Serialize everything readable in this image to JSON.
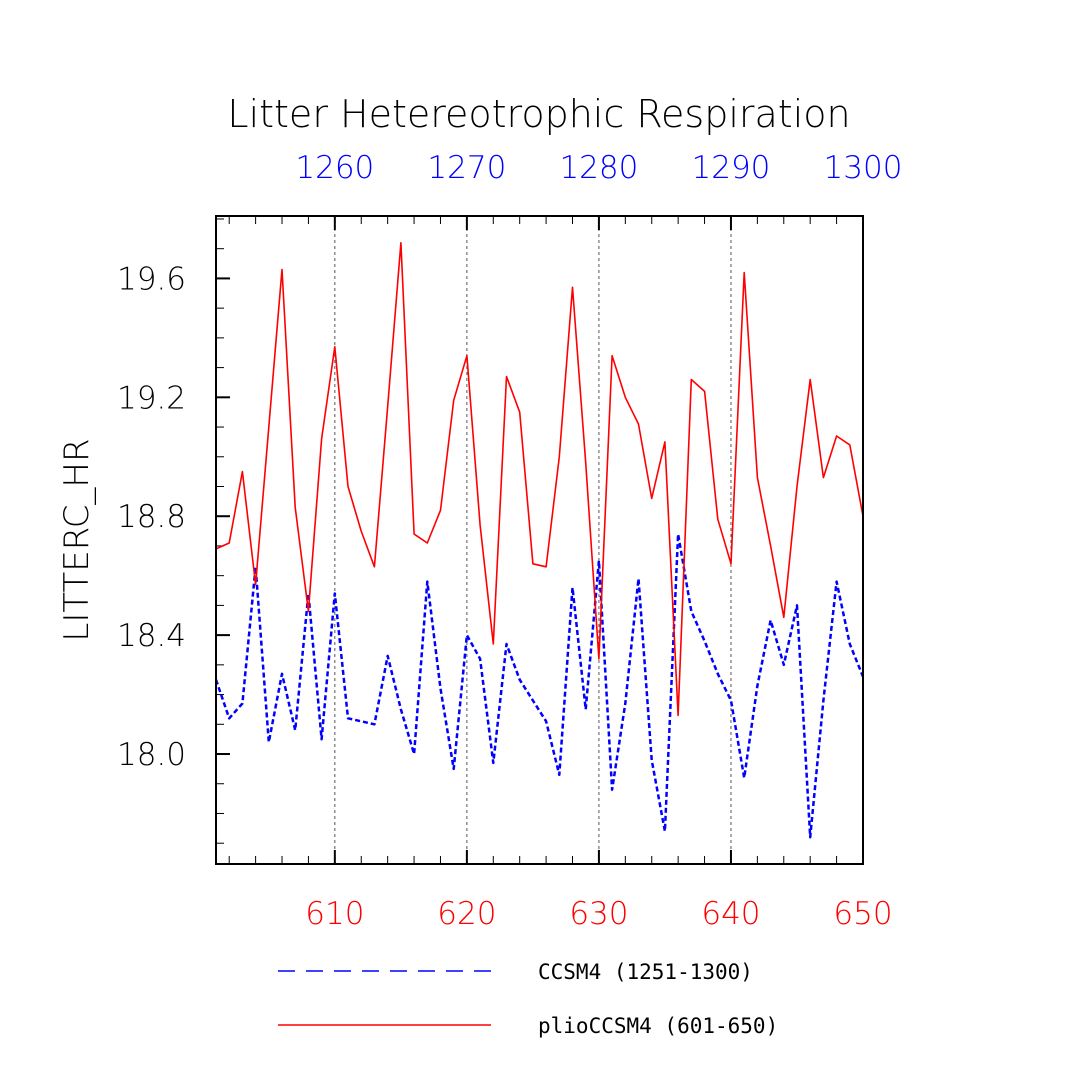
{
  "chart_data": {
    "type": "line",
    "title": "Litter Hetereotrophic Respiration",
    "ylabel": "LITTERC_HR",
    "xlabel": "",
    "x_bottom": {
      "range": [
        601,
        650
      ],
      "ticks": [
        610,
        620,
        630,
        640,
        650
      ],
      "color": "#ff0000"
    },
    "x_top": {
      "range": [
        1251,
        1300
      ],
      "ticks": [
        1260,
        1270,
        1280,
        1290,
        1300
      ],
      "color": "#0000ff"
    },
    "ylim": [
      17.63,
      19.81
    ],
    "y_ticks": [
      18.0,
      18.4,
      18.8,
      19.2,
      19.6
    ],
    "y_tick_labels": [
      "18.0",
      "18.4",
      "18.8",
      "19.2",
      "19.6"
    ],
    "grid": "vertical dashed at major x ticks",
    "legend_position": "bottom",
    "series": [
      {
        "name": "CCSM4 (1251-1300)",
        "axis": "top",
        "color": "#0000ff",
        "dash": "dashed",
        "x": [
          1251,
          1252,
          1253,
          1254,
          1255,
          1256,
          1257,
          1258,
          1259,
          1260,
          1261,
          1262,
          1263,
          1264,
          1265,
          1266,
          1267,
          1268,
          1269,
          1270,
          1271,
          1272,
          1273,
          1274,
          1275,
          1276,
          1277,
          1278,
          1279,
          1280,
          1281,
          1282,
          1283,
          1284,
          1285,
          1286,
          1287,
          1288,
          1289,
          1290,
          1291,
          1292,
          1293,
          1294,
          1295,
          1296,
          1297,
          1298,
          1299,
          1300
        ],
        "values": [
          18.25,
          18.12,
          18.17,
          18.63,
          18.04,
          18.27,
          18.08,
          18.54,
          18.05,
          18.54,
          18.12,
          18.11,
          18.1,
          18.33,
          18.15,
          18.0,
          18.58,
          18.22,
          17.95,
          18.4,
          18.32,
          17.97,
          18.37,
          18.25,
          18.18,
          18.11,
          17.93,
          18.56,
          18.15,
          18.65,
          17.88,
          18.17,
          18.59,
          17.98,
          17.74,
          18.74,
          18.48,
          18.38,
          18.27,
          18.18,
          17.92,
          18.23,
          18.45,
          18.3,
          18.5,
          17.72,
          18.18,
          18.58,
          18.37,
          18.26
        ]
      },
      {
        "name": "plioCCSM4 (601-650)",
        "axis": "bottom",
        "color": "#ff0000",
        "dash": "solid",
        "x": [
          601,
          602,
          603,
          604,
          605,
          606,
          607,
          608,
          609,
          610,
          611,
          612,
          613,
          614,
          615,
          616,
          617,
          618,
          619,
          620,
          621,
          622,
          623,
          624,
          625,
          626,
          627,
          628,
          629,
          630,
          631,
          632,
          633,
          634,
          635,
          636,
          637,
          638,
          639,
          640,
          641,
          642,
          643,
          644,
          645,
          646,
          647,
          648,
          649,
          650
        ],
        "values": [
          18.69,
          18.71,
          18.95,
          18.57,
          19.1,
          19.63,
          18.83,
          18.48,
          19.06,
          19.37,
          18.9,
          18.75,
          18.63,
          19.17,
          19.72,
          18.74,
          18.71,
          18.82,
          19.19,
          19.34,
          18.77,
          18.37,
          19.27,
          19.15,
          18.64,
          18.63,
          19.0,
          19.57,
          18.98,
          18.32,
          19.34,
          19.2,
          19.11,
          18.86,
          19.05,
          18.13,
          19.26,
          19.22,
          18.79,
          18.64,
          19.62,
          18.93,
          18.7,
          18.46,
          18.9,
          19.26,
          18.93,
          19.07,
          19.04,
          18.8
        ]
      }
    ]
  }
}
